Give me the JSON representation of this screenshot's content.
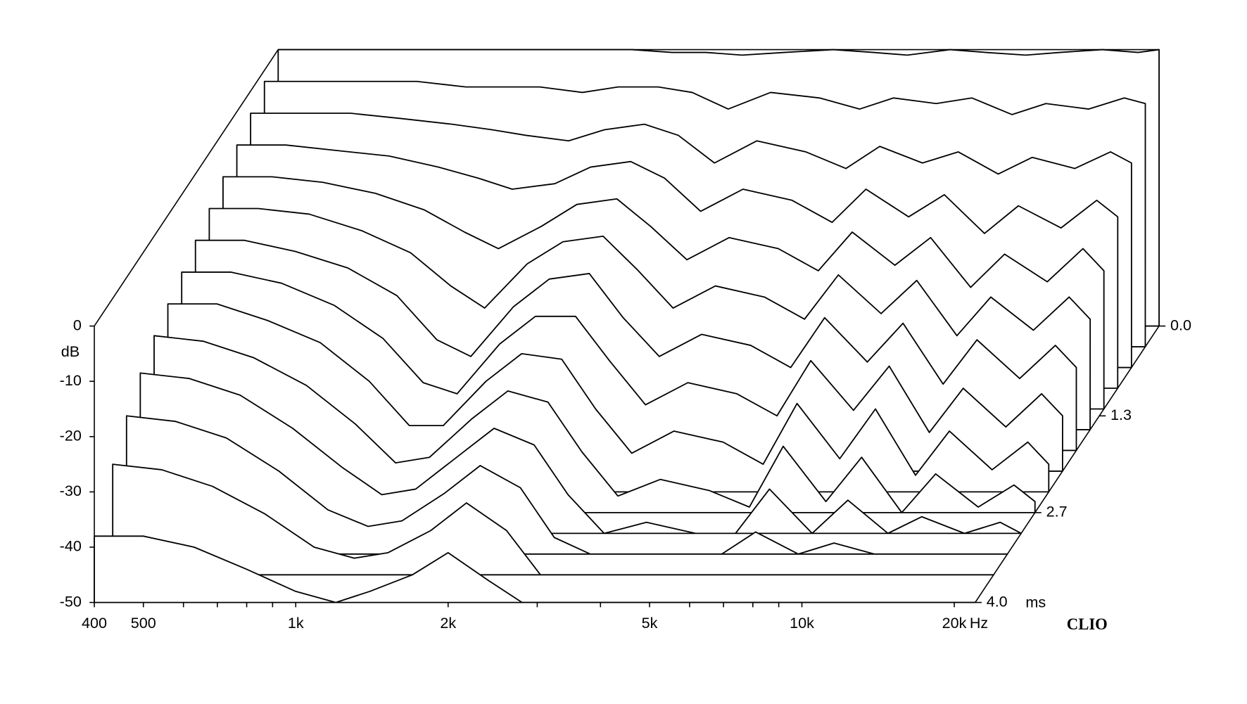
{
  "chart_data": {
    "type": "waterfall",
    "y_label": "dB",
    "x_unit": "Hz",
    "z_unit": "ms",
    "brand": "CLIO",
    "xscale": "log",
    "xlim": [
      400,
      22000
    ],
    "xticks": [
      400,
      500,
      {
        "value": 1000,
        "label": "1k"
      },
      {
        "value": 2000,
        "label": "2k"
      },
      {
        "value": 5000,
        "label": "5k"
      },
      {
        "value": 10000,
        "label": "10k"
      },
      {
        "value": 20000,
        "label": "20k"
      }
    ],
    "xminor": [
      600,
      700,
      800,
      900,
      3000,
      4000,
      6000,
      7000,
      8000,
      9000
    ],
    "ylim": [
      -50,
      0
    ],
    "yticks": [
      0,
      -10,
      -20,
      -30,
      -40,
      -50
    ],
    "zlim": [
      0,
      4
    ],
    "zticks": [
      {
        "value": 0,
        "label": "0.0"
      },
      1.3,
      2.7,
      {
        "value": 4,
        "label": "4.0"
      }
    ],
    "color": "#000000",
    "x": [
      400,
      500,
      630,
      800,
      1000,
      1200,
      1400,
      1700,
      2000,
      2400,
      2800,
      3300,
      4000,
      5000,
      6000,
      7000,
      8500,
      10000,
      12000,
      14000,
      17000,
      20000,
      22000
    ],
    "z": [
      0,
      0.3,
      0.6,
      0.9,
      1.2,
      1.5,
      1.8,
      2.1,
      2.4,
      2.7,
      3.0,
      3.3,
      3.6,
      4.0
    ],
    "series": [
      {
        "values": [
          0,
          0,
          0,
          0,
          0,
          0,
          0,
          0,
          0,
          -0.5,
          -0.5,
          -1,
          -0.5,
          0,
          -0.5,
          -1,
          0,
          -0.5,
          -1,
          -0.5,
          0,
          -0.5,
          0
        ]
      },
      {
        "values": [
          -2,
          -2,
          -2,
          -2,
          -3,
          -3,
          -3,
          -4,
          -3,
          -3,
          -4,
          -7,
          -4,
          -5,
          -7,
          -5,
          -6,
          -5,
          -8,
          -6,
          -7,
          -5,
          -6
        ]
      },
      {
        "values": [
          -4,
          -4,
          -4,
          -5,
          -6,
          -7,
          -8,
          -9,
          -7,
          -6,
          -8,
          -13,
          -9,
          -11,
          -14,
          -10,
          -13,
          -11,
          -15,
          -12,
          -14,
          -11,
          -13
        ]
      },
      {
        "values": [
          -6,
          -6,
          -7,
          -8,
          -10,
          -12,
          -14,
          -13,
          -10,
          -9,
          -12,
          -18,
          -14,
          -16,
          -20,
          -14,
          -19,
          -15,
          -22,
          -17,
          -21,
          -16,
          -19
        ]
      },
      {
        "values": [
          -8,
          -8,
          -9,
          -11,
          -14,
          -18,
          -21,
          -17,
          -13,
          -12,
          -17,
          -23,
          -19,
          -21,
          -25,
          -18,
          -24,
          -19,
          -28,
          -22,
          -27,
          -21,
          -25
        ]
      },
      {
        "values": [
          -10,
          -10,
          -11,
          -14,
          -18,
          -24,
          -28,
          -20,
          -16,
          -15,
          -21,
          -28,
          -24,
          -26,
          -30,
          -22,
          -29,
          -23,
          -33,
          -26,
          -32,
          -26,
          -30
        ]
      },
      {
        "values": [
          -12,
          -12,
          -14,
          -17,
          -22,
          -30,
          -33,
          -24,
          -19,
          -18,
          -26,
          -33,
          -29,
          -31,
          -35,
          -26,
          -34,
          -27,
          -38,
          -30,
          -37,
          -31,
          -35
        ]
      },
      {
        "values": [
          -14,
          -14,
          -16,
          -20,
          -26,
          -34,
          -36,
          -27,
          -22,
          -22,
          -30,
          -38,
          -34,
          -36,
          -40,
          -30,
          -39,
          -31,
          -43,
          -35,
          -42,
          -36,
          -40
        ]
      },
      {
        "values": [
          -16,
          -16,
          -19,
          -23,
          -30,
          -38,
          -38,
          -30,
          -25,
          -26,
          -35,
          -43,
          -39,
          -41,
          -45,
          -34,
          -44,
          -35,
          -47,
          -39,
          -46,
          -41,
          -45
        ]
      },
      {
        "values": [
          -18,
          -19,
          -22,
          -27,
          -34,
          -41,
          -40,
          -33,
          -28,
          -30,
          -39,
          -47,
          -44,
          -46,
          -49,
          -38,
          -48,
          -40,
          -50,
          -43,
          -49,
          -45,
          -48
        ]
      },
      {
        "values": [
          -21,
          -22,
          -25,
          -31,
          -38,
          -43,
          -42,
          -36,
          -31,
          -34,
          -43,
          -50,
          -48,
          -50,
          -50,
          -42,
          -50,
          -44,
          -50,
          -47,
          -50,
          -48,
          -50
        ]
      },
      {
        "values": [
          -25,
          -26,
          -29,
          -35,
          -42,
          -45,
          -44,
          -39,
          -34,
          -38,
          -47,
          -50,
          -50,
          -50,
          -50,
          -46,
          -50,
          -48,
          -50,
          -50,
          -50,
          -50,
          -50
        ]
      },
      {
        "values": [
          -30,
          -31,
          -34,
          -39,
          -45,
          -47,
          -46,
          -42,
          -37,
          -42,
          -50,
          -50,
          -50,
          -50,
          -50,
          -50,
          -50,
          -50,
          -50,
          -50,
          -50,
          -50,
          -50
        ]
      },
      {
        "values": [
          -38,
          -38,
          -40,
          -44,
          -48,
          -50,
          -48,
          -45,
          -41,
          -46,
          -50,
          -50,
          -50,
          -50,
          -50,
          -50,
          -50,
          -50,
          -50,
          -50,
          -50,
          -50,
          -50
        ]
      }
    ]
  }
}
